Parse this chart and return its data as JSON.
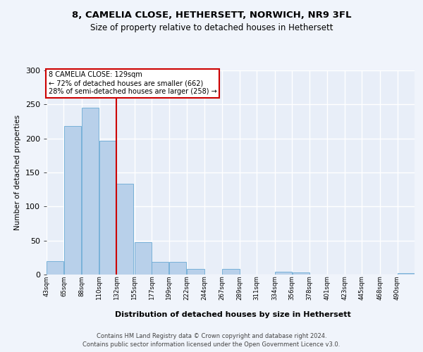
{
  "title1": "8, CAMELIA CLOSE, HETHERSETT, NORWICH, NR9 3FL",
  "title2": "Size of property relative to detached houses in Hethersett",
  "xlabel": "Distribution of detached houses by size in Hethersett",
  "ylabel": "Number of detached properties",
  "property_label": "8 CAMELIA CLOSE: 129sqm",
  "annotation_line1": "← 72% of detached houses are smaller (662)",
  "annotation_line2": "28% of semi-detached houses are larger (258) →",
  "bin_labels": [
    "43sqm",
    "65sqm",
    "88sqm",
    "110sqm",
    "132sqm",
    "155sqm",
    "177sqm",
    "199sqm",
    "222sqm",
    "244sqm",
    "267sqm",
    "289sqm",
    "311sqm",
    "334sqm",
    "356sqm",
    "378sqm",
    "401sqm",
    "423sqm",
    "445sqm",
    "468sqm",
    "490sqm"
  ],
  "bin_edges": [
    43,
    65,
    88,
    110,
    132,
    155,
    177,
    199,
    222,
    244,
    267,
    289,
    311,
    334,
    356,
    378,
    401,
    423,
    445,
    468,
    490
  ],
  "bar_heights": [
    20,
    218,
    245,
    197,
    133,
    48,
    19,
    19,
    8,
    0,
    8,
    0,
    0,
    4,
    3,
    0,
    0,
    0,
    0,
    0,
    2
  ],
  "bar_color": "#b8d0ea",
  "bar_edge_color": "#6aaad4",
  "red_line_color": "#cc0000",
  "plot_bg_color": "#e8eef8",
  "fig_bg_color": "#f0f4fb",
  "grid_color": "#ffffff",
  "annotation_box_color": "#ffffff",
  "annotation_box_edge_color": "#cc0000",
  "ylim": [
    0,
    300
  ],
  "yticks": [
    0,
    50,
    100,
    150,
    200,
    250,
    300
  ],
  "footer1": "Contains HM Land Registry data © Crown copyright and database right 2024.",
  "footer2": "Contains public sector information licensed under the Open Government Licence v3.0."
}
